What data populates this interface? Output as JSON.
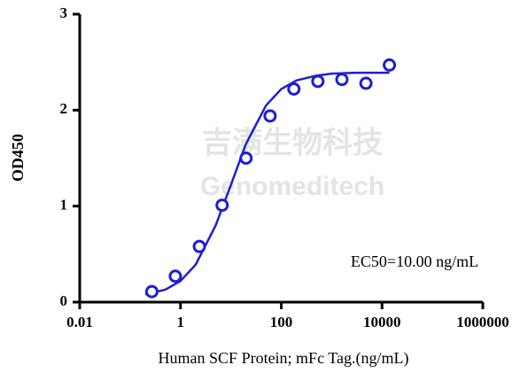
{
  "chart_data": {
    "type": "scatter",
    "ylabel": "OD450",
    "xlabel": "Human SCF Protein; mFc Tag.(ng/mL)",
    "annotation": "EC50=10.00 ng/mL",
    "watermark": [
      "吉满生物科技",
      "Genomeditech"
    ],
    "xscale": "log",
    "xlim": [
      0.01,
      1000000
    ],
    "xticks": [
      0.01,
      1,
      100,
      10000,
      1000000
    ],
    "ylim": [
      0,
      3
    ],
    "yticks": [
      0,
      1,
      2,
      3
    ],
    "series": [
      {
        "color": "#1f1fd1",
        "marker": "circle",
        "x": [
          0.27,
          0.79,
          2.37,
          6.7,
          20,
          60,
          178,
          533,
          1600,
          4800,
          14000
        ],
        "values": [
          0.11,
          0.27,
          0.58,
          1.01,
          1.5,
          1.94,
          2.22,
          2.3,
          2.32,
          2.28,
          2.47
        ]
      }
    ],
    "fit": {
      "color": "#1f1fd1",
      "x": [
        0.2,
        0.5,
        1,
        2,
        5,
        10,
        20,
        50,
        100,
        200,
        500,
        1000,
        3000,
        14000
      ],
      "values": [
        0.08,
        0.13,
        0.22,
        0.39,
        0.8,
        1.22,
        1.65,
        2.05,
        2.22,
        2.31,
        2.36,
        2.38,
        2.39,
        2.39
      ]
    }
  }
}
